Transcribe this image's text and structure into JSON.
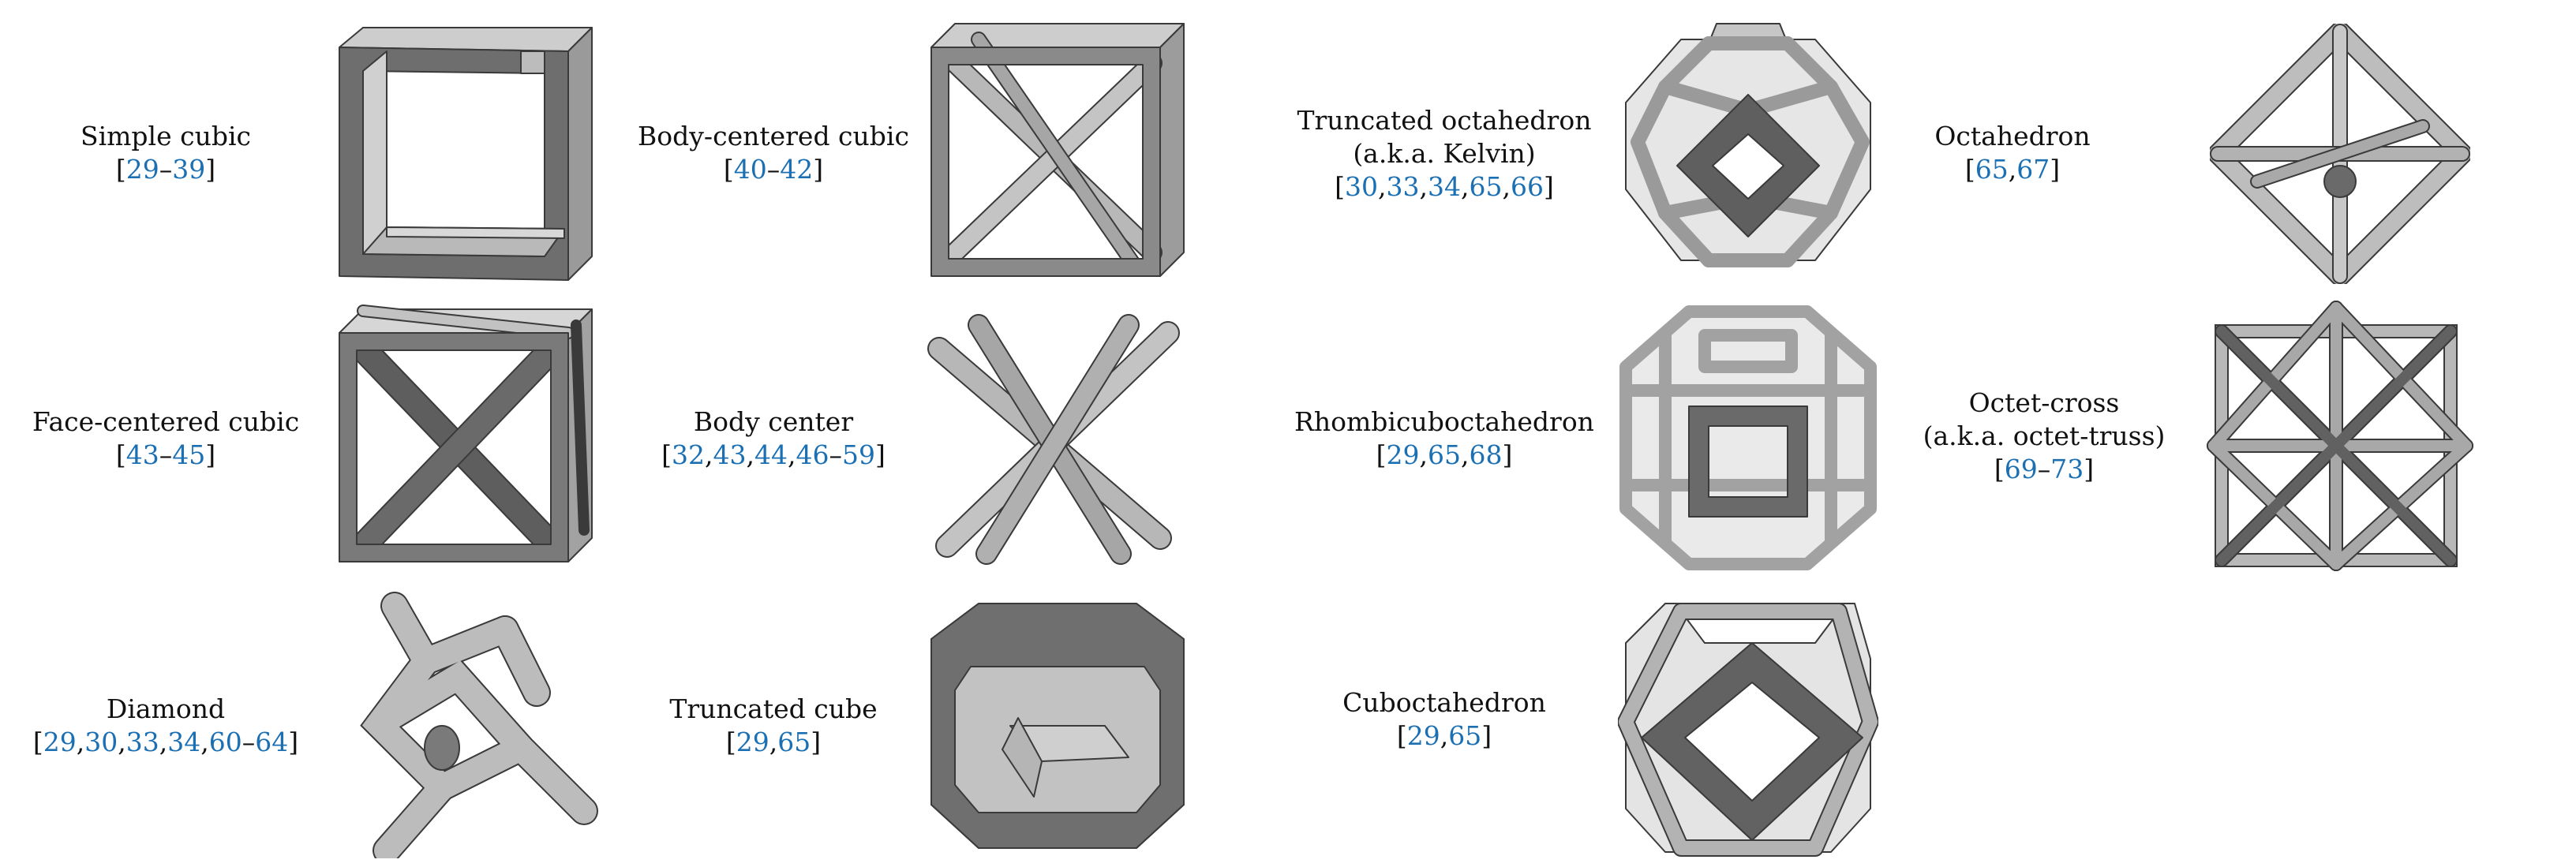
{
  "structures": [
    {
      "id": "simple-cubic",
      "name": [
        "Simple cubic"
      ],
      "refs": [
        {
          "t": "["
        },
        {
          "c": "29"
        },
        {
          "t": "–"
        },
        {
          "c": "39"
        },
        {
          "t": "]"
        }
      ]
    },
    {
      "id": "body-centered-cubic",
      "name": [
        "Body-centered cubic"
      ],
      "refs": [
        {
          "t": "["
        },
        {
          "c": "40"
        },
        {
          "t": "–"
        },
        {
          "c": "42"
        },
        {
          "t": "]"
        }
      ]
    },
    {
      "id": "truncated-octahedron",
      "name": [
        "Truncated octahedron",
        "(a.k.a. Kelvin)"
      ],
      "refs": [
        {
          "t": "["
        },
        {
          "c": "30"
        },
        {
          "t": ","
        },
        {
          "c": "33"
        },
        {
          "t": ","
        },
        {
          "c": "34"
        },
        {
          "t": ","
        },
        {
          "c": "65"
        },
        {
          "t": ","
        },
        {
          "c": "66"
        },
        {
          "t": "]"
        }
      ]
    },
    {
      "id": "octahedron",
      "name": [
        "Octahedron"
      ],
      "refs": [
        {
          "t": "["
        },
        {
          "c": "65"
        },
        {
          "t": ","
        },
        {
          "c": "67"
        },
        {
          "t": "]"
        }
      ]
    },
    {
      "id": "face-centered-cubic",
      "name": [
        "Face-centered cubic"
      ],
      "refs": [
        {
          "t": "["
        },
        {
          "c": "43"
        },
        {
          "t": "–"
        },
        {
          "c": "45"
        },
        {
          "t": "]"
        }
      ]
    },
    {
      "id": "body-center",
      "name": [
        "Body center"
      ],
      "refs": [
        {
          "t": "["
        },
        {
          "c": "32"
        },
        {
          "t": ","
        },
        {
          "c": "43"
        },
        {
          "t": ","
        },
        {
          "c": "44"
        },
        {
          "t": ","
        },
        {
          "c": "46"
        },
        {
          "t": "–"
        },
        {
          "c": "59"
        },
        {
          "t": "]"
        }
      ]
    },
    {
      "id": "rhombicuboctahedron",
      "name": [
        "Rhombicuboctahedron"
      ],
      "refs": [
        {
          "t": "["
        },
        {
          "c": "29"
        },
        {
          "t": ","
        },
        {
          "c": "65"
        },
        {
          "t": ","
        },
        {
          "c": "68"
        },
        {
          "t": "]"
        }
      ]
    },
    {
      "id": "octet-cross",
      "name": [
        "Octet-cross",
        "(a.k.a. octet-truss)"
      ],
      "refs": [
        {
          "t": "["
        },
        {
          "c": "69"
        },
        {
          "t": "–"
        },
        {
          "c": "73"
        },
        {
          "t": "]"
        }
      ]
    },
    {
      "id": "diamond",
      "name": [
        "Diamond"
      ],
      "refs": [
        {
          "t": "["
        },
        {
          "c": "29"
        },
        {
          "t": ","
        },
        {
          "c": "30"
        },
        {
          "t": ","
        },
        {
          "c": "33"
        },
        {
          "t": ","
        },
        {
          "c": "34"
        },
        {
          "t": ","
        },
        {
          "c": "60"
        },
        {
          "t": "–"
        },
        {
          "c": "64"
        },
        {
          "t": "]"
        }
      ]
    },
    {
      "id": "truncated-cube",
      "name": [
        "Truncated cube"
      ],
      "refs": [
        {
          "t": "["
        },
        {
          "c": "29"
        },
        {
          "t": ","
        },
        {
          "c": "65"
        },
        {
          "t": "]"
        }
      ]
    },
    {
      "id": "cuboctahedron",
      "name": [
        "Cuboctahedron"
      ],
      "refs": [
        {
          "t": "["
        },
        {
          "c": "29"
        },
        {
          "t": ","
        },
        {
          "c": "65"
        },
        {
          "t": "]"
        }
      ]
    }
  ],
  "colors": {
    "citation": "#1b6fb3",
    "strut_light": "#bdbdbd",
    "strut_dark": "#6f6f6f",
    "edge": "#3a3a3a"
  }
}
